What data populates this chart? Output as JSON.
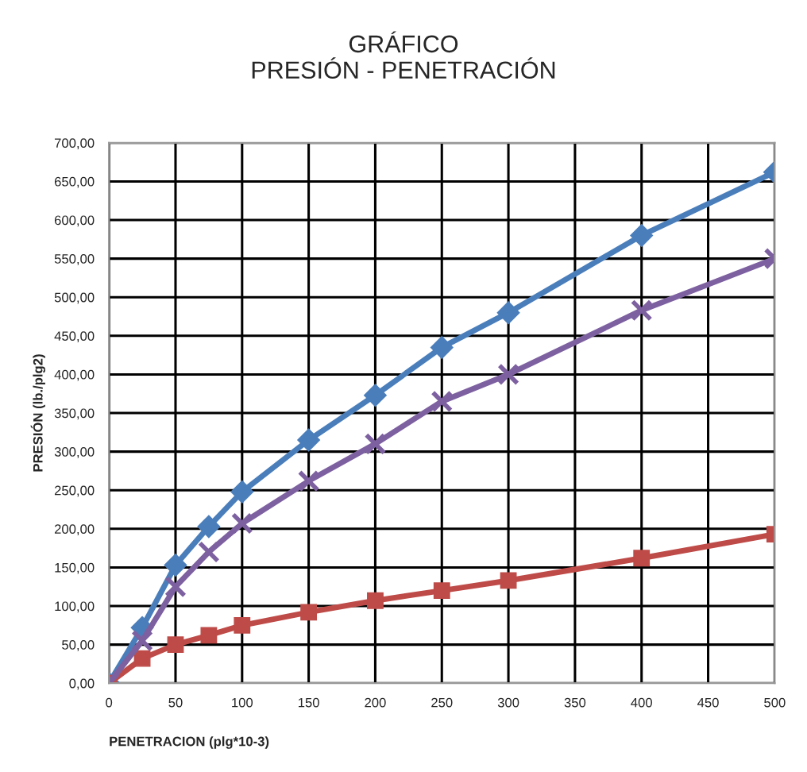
{
  "chart_data": {
    "type": "line",
    "title": "GRÁFICO\nPRESIÓN - PENETRACIÓN",
    "xlabel": "PENETRACION (plg*10-3)",
    "ylabel": "PRESIÓN (lb./plg2)",
    "x": [
      0,
      25,
      50,
      75,
      100,
      150,
      200,
      250,
      300,
      400,
      500
    ],
    "series": [
      {
        "color": "#4a7ebb",
        "marker": "diamond",
        "values": [
          0,
          72,
          153,
          203,
          248,
          315,
          373,
          435,
          480,
          580,
          662
        ]
      },
      {
        "color": "#be4b48",
        "marker": "square",
        "values": [
          0,
          32,
          50,
          62,
          75,
          92,
          107,
          120,
          133,
          162,
          193
        ]
      },
      {
        "color": "#7d60a0",
        "marker": "cross",
        "values": [
          0,
          55,
          125,
          170,
          207,
          262,
          310,
          365,
          400,
          483,
          550
        ]
      }
    ],
    "xlim": [
      0,
      500
    ],
    "xticks": [
      0,
      50,
      100,
      150,
      200,
      250,
      300,
      350,
      400,
      450,
      500
    ],
    "ylim": [
      0,
      700
    ],
    "yticks": [
      {
        "value": 0,
        "label": "0,00"
      },
      {
        "value": 50,
        "label": "50,00"
      },
      {
        "value": 100,
        "label": "100,00"
      },
      {
        "value": 150,
        "label": "150,00"
      },
      {
        "value": 200,
        "label": "200,00"
      },
      {
        "value": 250,
        "label": "250,00"
      },
      {
        "value": 300,
        "label": "300,00"
      },
      {
        "value": 350,
        "label": "350,00"
      },
      {
        "value": 400,
        "label": "400,00"
      },
      {
        "value": 450,
        "label": "450,00"
      },
      {
        "value": 500,
        "label": "500,00"
      },
      {
        "value": 550,
        "label": "550,00"
      },
      {
        "value": 600,
        "label": "600,00"
      },
      {
        "value": 650,
        "label": "650,00"
      },
      {
        "value": 700,
        "label": "700,00"
      }
    ],
    "grid": true,
    "legend": false
  }
}
